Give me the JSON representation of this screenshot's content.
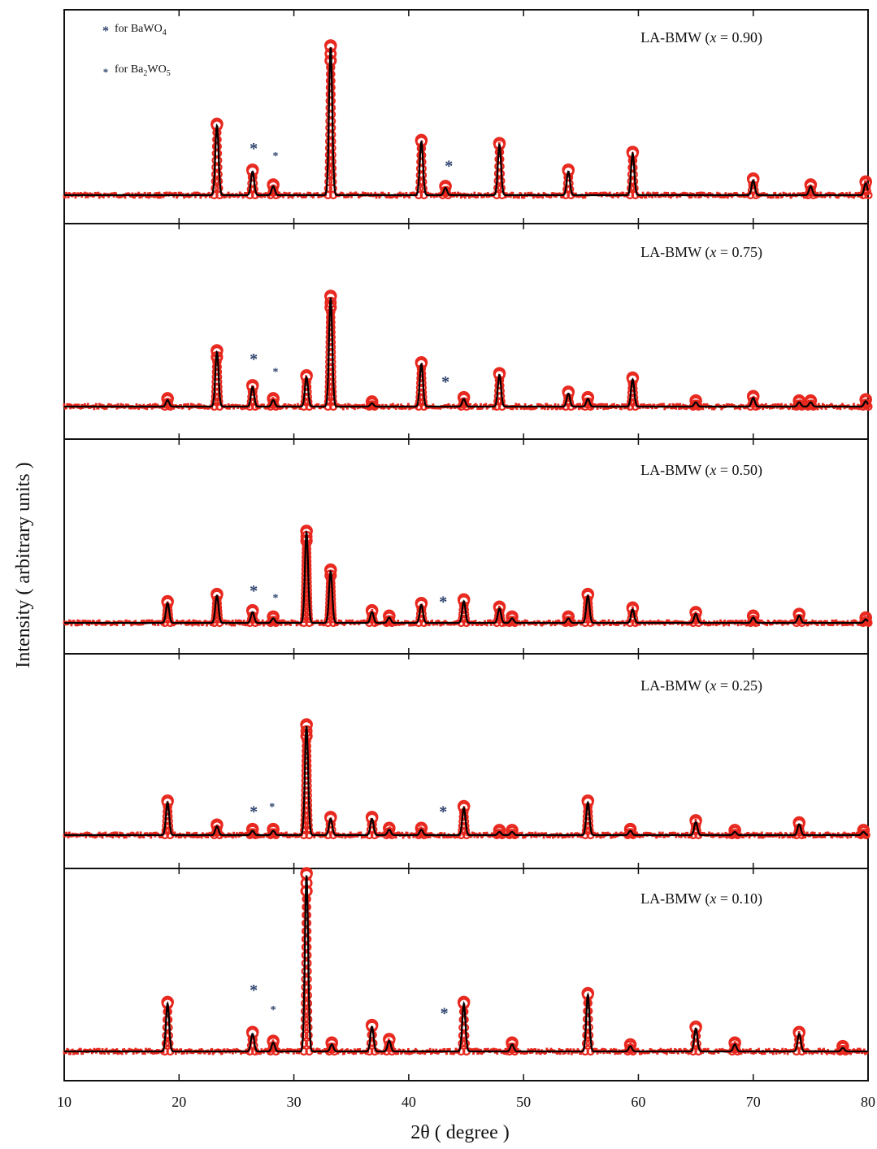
{
  "chart_data": {
    "type": "line",
    "title": "",
    "xlabel": "2θ ( degree )",
    "ylabel": "Intensity ( arbitrary units )",
    "xlim": [
      10,
      80
    ],
    "xticks": [
      10,
      20,
      30,
      40,
      50,
      60,
      70,
      80
    ],
    "xtick_labels": [
      "10",
      "20",
      "30",
      "40",
      "50",
      "60",
      "70",
      "80"
    ],
    "y_units": "arbitrary (relative intensity, tallest peak per panel = 1.0)",
    "legend": [
      {
        "symbol": "*",
        "text": "for BaWO",
        "sub": "4"
      },
      {
        "symbol": "*",
        "text": "for Ba",
        "sub": "2",
        "text2": "WO",
        "sub2": "5"
      }
    ],
    "legend_position": "top-left",
    "series_styles": {
      "observed": "red open circles",
      "calculated": "black line"
    },
    "colors": {
      "observed": "#e8281e",
      "calculated": "#000000",
      "marker": "#2a3f6b"
    },
    "panels": [
      {
        "label": "LA-BMW (x = 0.90)",
        "label_pre": "LA-BMW (",
        "label_var": "x",
        "label_post": " = 0.90)",
        "peaks": [
          {
            "x": 23.3,
            "y": 0.47
          },
          {
            "x": 26.4,
            "y": 0.16
          },
          {
            "x": 28.2,
            "y": 0.06
          },
          {
            "x": 33.2,
            "y": 1.0
          },
          {
            "x": 41.1,
            "y": 0.36
          },
          {
            "x": 43.2,
            "y": 0.05
          },
          {
            "x": 47.9,
            "y": 0.34
          },
          {
            "x": 53.9,
            "y": 0.16
          },
          {
            "x": 59.5,
            "y": 0.28
          },
          {
            "x": 70.0,
            "y": 0.1
          },
          {
            "x": 75.0,
            "y": 0.06
          },
          {
            "x": 79.8,
            "y": 0.08
          }
        ],
        "markers": [
          {
            "x": 26.5,
            "y": 0.32,
            "symbol": "*"
          },
          {
            "x": 28.4,
            "y": 0.28,
            "symbol": "*"
          },
          {
            "x": 43.5,
            "y": 0.2,
            "symbol": "*"
          }
        ]
      },
      {
        "label": "LA-BMW (x = 0.75)",
        "label_pre": "LA-BMW (",
        "label_var": "x",
        "label_post": " = 0.75)",
        "peaks": [
          {
            "x": 19.0,
            "y": 0.06
          },
          {
            "x": 23.3,
            "y": 0.5
          },
          {
            "x": 26.4,
            "y": 0.18
          },
          {
            "x": 28.2,
            "y": 0.06
          },
          {
            "x": 31.1,
            "y": 0.27
          },
          {
            "x": 33.2,
            "y": 1.0
          },
          {
            "x": 36.8,
            "y": 0.03
          },
          {
            "x": 41.1,
            "y": 0.39
          },
          {
            "x": 44.8,
            "y": 0.07
          },
          {
            "x": 47.9,
            "y": 0.29
          },
          {
            "x": 53.9,
            "y": 0.12
          },
          {
            "x": 55.6,
            "y": 0.07
          },
          {
            "x": 59.5,
            "y": 0.25
          },
          {
            "x": 65.0,
            "y": 0.04
          },
          {
            "x": 70.0,
            "y": 0.08
          },
          {
            "x": 74.0,
            "y": 0.04
          },
          {
            "x": 75.0,
            "y": 0.04
          },
          {
            "x": 79.8,
            "y": 0.05
          }
        ],
        "markers": [
          {
            "x": 26.5,
            "y": 0.44,
            "symbol": "*"
          },
          {
            "x": 28.4,
            "y": 0.34,
            "symbol": "*"
          },
          {
            "x": 43.2,
            "y": 0.23,
            "symbol": "*"
          }
        ]
      },
      {
        "label": "LA-BMW (x = 0.50)",
        "label_pre": "LA-BMW (",
        "label_var": "x",
        "label_post": " = 0.50)",
        "peaks": [
          {
            "x": 19.0,
            "y": 0.22
          },
          {
            "x": 23.3,
            "y": 0.3
          },
          {
            "x": 26.4,
            "y": 0.12
          },
          {
            "x": 28.2,
            "y": 0.05
          },
          {
            "x": 31.1,
            "y": 1.0
          },
          {
            "x": 33.2,
            "y": 0.57
          },
          {
            "x": 36.8,
            "y": 0.12
          },
          {
            "x": 38.3,
            "y": 0.06
          },
          {
            "x": 41.1,
            "y": 0.2
          },
          {
            "x": 44.8,
            "y": 0.24
          },
          {
            "x": 47.9,
            "y": 0.16
          },
          {
            "x": 49.0,
            "y": 0.05
          },
          {
            "x": 53.9,
            "y": 0.05
          },
          {
            "x": 55.6,
            "y": 0.3
          },
          {
            "x": 59.5,
            "y": 0.15
          },
          {
            "x": 65.0,
            "y": 0.1
          },
          {
            "x": 70.0,
            "y": 0.06
          },
          {
            "x": 74.0,
            "y": 0.08
          },
          {
            "x": 79.8,
            "y": 0.04
          }
        ],
        "markers": [
          {
            "x": 26.5,
            "y": 0.36,
            "symbol": "*"
          },
          {
            "x": 28.4,
            "y": 0.3,
            "symbol": "*"
          },
          {
            "x": 43.0,
            "y": 0.24,
            "symbol": "*"
          }
        ]
      },
      {
        "label": "LA-BMW (x = 0.25)",
        "label_pre": "LA-BMW (",
        "label_var": "x",
        "label_post": " = 0.25)",
        "peaks": [
          {
            "x": 19.0,
            "y": 0.3
          },
          {
            "x": 23.3,
            "y": 0.08
          },
          {
            "x": 26.4,
            "y": 0.04
          },
          {
            "x": 28.2,
            "y": 0.04
          },
          {
            "x": 31.1,
            "y": 1.0
          },
          {
            "x": 33.2,
            "y": 0.15
          },
          {
            "x": 36.8,
            "y": 0.15
          },
          {
            "x": 38.3,
            "y": 0.05
          },
          {
            "x": 41.1,
            "y": 0.05
          },
          {
            "x": 44.8,
            "y": 0.25
          },
          {
            "x": 47.9,
            "y": 0.03
          },
          {
            "x": 49.0,
            "y": 0.03
          },
          {
            "x": 55.6,
            "y": 0.3
          },
          {
            "x": 59.3,
            "y": 0.04
          },
          {
            "x": 65.0,
            "y": 0.12
          },
          {
            "x": 68.4,
            "y": 0.03
          },
          {
            "x": 74.0,
            "y": 0.1
          },
          {
            "x": 79.6,
            "y": 0.03
          }
        ],
        "markers": [
          {
            "x": 26.5,
            "y": 0.22,
            "symbol": "*"
          },
          {
            "x": 28.1,
            "y": 0.28,
            "symbol": "*"
          },
          {
            "x": 43.0,
            "y": 0.22,
            "symbol": "*"
          }
        ]
      },
      {
        "label": "LA-BMW (x = 0.10)",
        "label_pre": "LA-BMW (",
        "label_var": "x",
        "label_post": " = 0.10)",
        "peaks": [
          {
            "x": 19.0,
            "y": 0.27
          },
          {
            "x": 26.4,
            "y": 0.1
          },
          {
            "x": 28.2,
            "y": 0.05
          },
          {
            "x": 31.1,
            "y": 1.0
          },
          {
            "x": 33.3,
            "y": 0.04
          },
          {
            "x": 36.8,
            "y": 0.14
          },
          {
            "x": 38.3,
            "y": 0.06
          },
          {
            "x": 44.8,
            "y": 0.27
          },
          {
            "x": 49.0,
            "y": 0.04
          },
          {
            "x": 55.6,
            "y": 0.32
          },
          {
            "x": 59.3,
            "y": 0.03
          },
          {
            "x": 65.0,
            "y": 0.13
          },
          {
            "x": 68.4,
            "y": 0.04
          },
          {
            "x": 74.0,
            "y": 0.1
          },
          {
            "x": 77.8,
            "y": 0.02
          }
        ],
        "markers": [
          {
            "x": 26.5,
            "y": 0.35,
            "symbol": "*"
          },
          {
            "x": 28.2,
            "y": 0.25,
            "symbol": "*"
          },
          {
            "x": 43.1,
            "y": 0.22,
            "symbol": "*"
          }
        ]
      }
    ]
  }
}
